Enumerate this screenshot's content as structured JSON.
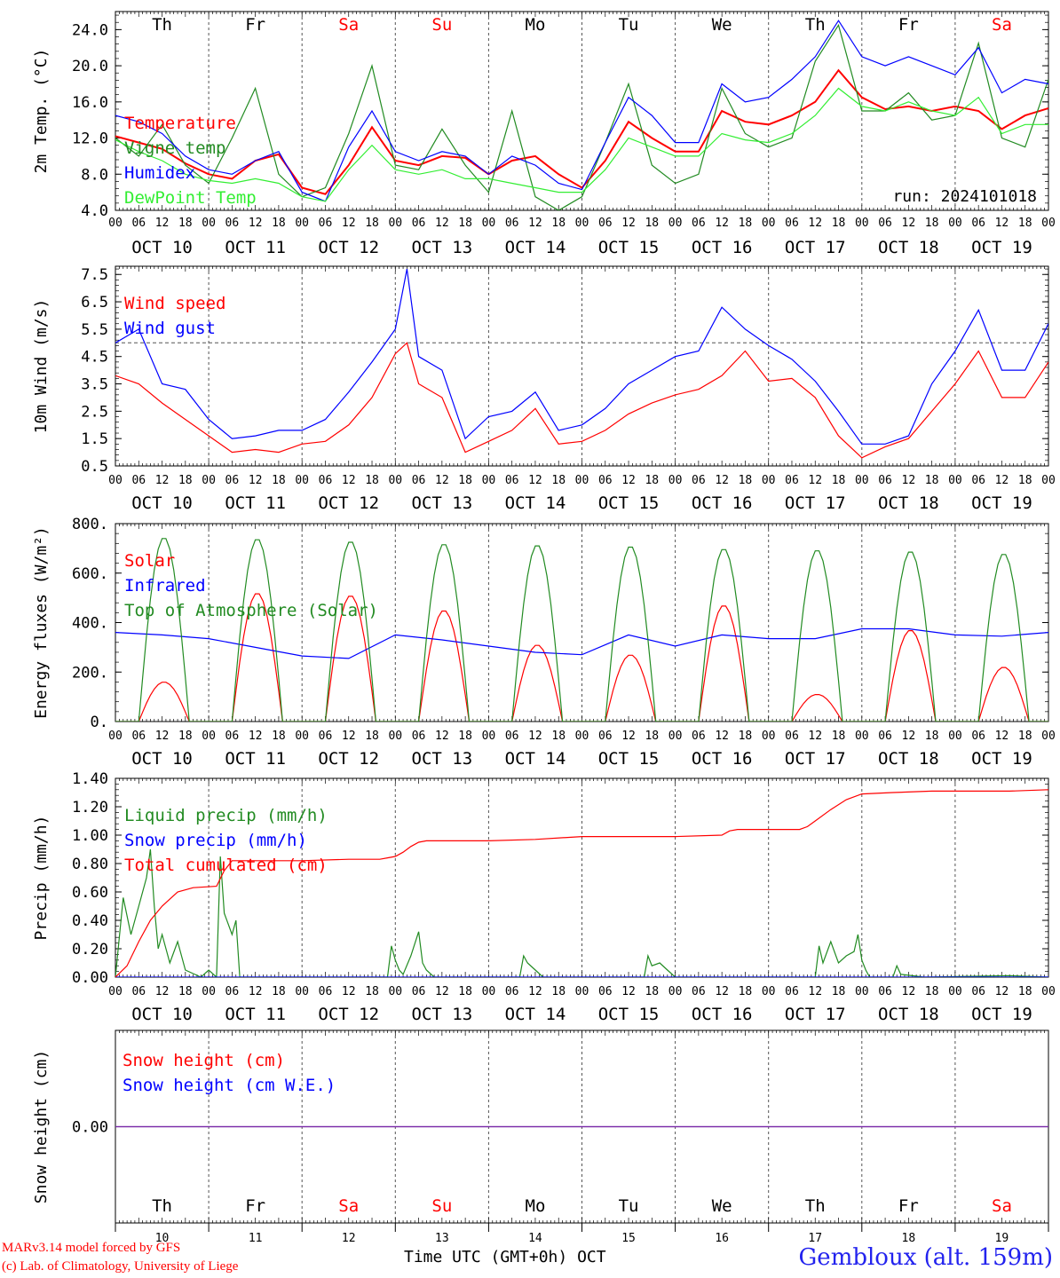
{
  "meta": {
    "run_label": "run: 2024101018",
    "credit_line1": "MARv3.14 model forced by GFS",
    "credit_line2": "(c) Lab. of Climatology, University of Liege",
    "station": "Gembloux (alt. 159m)",
    "xaxis_title": "Time UTC (GMT+0h) OCT"
  },
  "colors": {
    "red": "#ff0000",
    "dark_green": "#228b22",
    "blue": "#0000ff",
    "light_green": "#33ee33",
    "purple": "#7a2aa8",
    "grid": "#555555"
  },
  "time_axis": {
    "hour_ticks": [
      "00",
      "06",
      "12",
      "18"
    ],
    "end_tick": "00",
    "dates": [
      "OCT 10",
      "OCT 11",
      "OCT 12",
      "OCT 13",
      "OCT 14",
      "OCT 15",
      "OCT 16",
      "OCT 17",
      "OCT 18",
      "OCT 19"
    ],
    "day_names": [
      "Th",
      "Fr",
      "Sa",
      "Su",
      "Mo",
      "Tu",
      "We",
      "Th",
      "Fr",
      "Sa"
    ],
    "weekend_days": [
      2,
      3,
      9
    ],
    "day_numbers": [
      "10",
      "11",
      "12",
      "13",
      "14",
      "15",
      "16",
      "17",
      "18",
      "19"
    ]
  },
  "chart_data": [
    {
      "type": "line",
      "ylabel": "2m Temp. (°C)",
      "ylim": [
        4.0,
        26.0
      ],
      "yticks": [
        4.0,
        8.0,
        12.0,
        16.0,
        20.0,
        24.0
      ],
      "ytick_labels": [
        "4.0",
        "8.0",
        "12.0",
        "16.0",
        "20.0",
        "24.0"
      ],
      "xlim_hours": [
        0,
        240
      ],
      "series": [
        {
          "name": "Temperature",
          "color": "#ff0000",
          "x": [
            0,
            6,
            12,
            18,
            24,
            30,
            36,
            42,
            48,
            54,
            60,
            66,
            72,
            78,
            84,
            90,
            96,
            102,
            108,
            114,
            120,
            126,
            132,
            138,
            144,
            150,
            156,
            162,
            168,
            174,
            180,
            186,
            192,
            198,
            204,
            210,
            216,
            222,
            228,
            234,
            240
          ],
          "y": [
            12.2,
            11.5,
            10.8,
            9.2,
            8.0,
            7.5,
            9.5,
            10.2,
            6.5,
            5.8,
            9.0,
            13.2,
            9.5,
            9.0,
            10.0,
            9.8,
            8.0,
            9.5,
            10.0,
            8.0,
            6.5,
            9.5,
            13.8,
            12.0,
            10.5,
            10.5,
            15.0,
            13.8,
            13.5,
            14.5,
            16.0,
            19.5,
            16.5,
            15.2,
            15.5,
            15.0,
            15.5,
            15.0,
            13.0,
            14.5,
            15.3
          ]
        },
        {
          "name": "Vigne temp",
          "color": "#228b22",
          "x": [
            0,
            6,
            12,
            18,
            24,
            30,
            36,
            42,
            48,
            54,
            60,
            66,
            72,
            78,
            84,
            90,
            96,
            102,
            108,
            114,
            120,
            126,
            132,
            138,
            144,
            150,
            156,
            162,
            168,
            174,
            180,
            186,
            192,
            198,
            204,
            210,
            216,
            222,
            228,
            234,
            240
          ],
          "y": [
            12.0,
            10.0,
            13.5,
            9.0,
            7.0,
            12.0,
            17.5,
            8.0,
            5.5,
            6.5,
            12.5,
            20.0,
            9.0,
            8.5,
            13.0,
            9.0,
            6.0,
            15.0,
            5.5,
            4.0,
            5.5,
            11.5,
            18.0,
            9.0,
            7.0,
            8.0,
            17.5,
            12.5,
            11.0,
            12.0,
            20.5,
            24.5,
            15.0,
            15.0,
            17.0,
            14.0,
            14.5,
            22.5,
            12.0,
            11.0,
            18.5
          ]
        },
        {
          "name": "Humidex",
          "color": "#0000ff",
          "x": [
            0,
            6,
            12,
            18,
            24,
            30,
            36,
            42,
            48,
            54,
            60,
            66,
            72,
            78,
            84,
            90,
            96,
            102,
            108,
            114,
            120,
            126,
            132,
            138,
            144,
            150,
            156,
            162,
            168,
            174,
            180,
            186,
            192,
            198,
            204,
            210,
            216,
            222,
            228,
            234,
            240
          ],
          "y": [
            14.5,
            13.8,
            12.5,
            10.0,
            8.5,
            8.0,
            9.5,
            10.5,
            6.0,
            5.0,
            11.0,
            15.0,
            10.5,
            9.5,
            10.5,
            10.0,
            8.0,
            10.0,
            9.0,
            7.0,
            6.3,
            11.5,
            16.5,
            14.5,
            11.5,
            11.5,
            18.0,
            16.0,
            16.5,
            18.5,
            21.0,
            25.0,
            21.0,
            20.0,
            21.0,
            20.0,
            19.0,
            22.0,
            17.0,
            18.5,
            18.0
          ]
        },
        {
          "name": "DewPoint Temp",
          "color": "#33ee33",
          "x": [
            0,
            6,
            12,
            18,
            24,
            30,
            36,
            42,
            48,
            54,
            60,
            66,
            72,
            78,
            84,
            90,
            96,
            102,
            108,
            114,
            120,
            126,
            132,
            138,
            144,
            150,
            156,
            162,
            168,
            174,
            180,
            186,
            192,
            198,
            204,
            210,
            216,
            222,
            228,
            234,
            240
          ],
          "y": [
            11.8,
            10.5,
            9.5,
            8.0,
            7.3,
            7.0,
            7.5,
            7.0,
            5.5,
            5.0,
            8.5,
            11.2,
            8.5,
            8.0,
            8.5,
            7.5,
            7.5,
            7.0,
            6.5,
            6.0,
            6.0,
            8.5,
            12.0,
            11.0,
            10.0,
            10.0,
            12.5,
            11.8,
            11.5,
            12.5,
            14.5,
            17.5,
            15.5,
            15.0,
            16.0,
            15.0,
            14.5,
            16.5,
            12.5,
            13.5,
            13.5
          ]
        }
      ],
      "legend": [
        "Temperature",
        "Vigne temp",
        "Humidex",
        "DewPoint Temp"
      ],
      "annotation": "run: 2024101018"
    },
    {
      "type": "line",
      "ylabel": "10m Wind (m/s)",
      "ylim": [
        0.5,
        7.8
      ],
      "yticks": [
        0.5,
        1.5,
        2.5,
        3.5,
        4.5,
        5.5,
        6.5,
        7.5
      ],
      "ytick_labels": [
        "0.5",
        "1.5",
        "2.5",
        "3.5",
        "4.5",
        "5.5",
        "6.5",
        "7.5"
      ],
      "reference_line": 5.0,
      "xlim_hours": [
        0,
        240
      ],
      "series": [
        {
          "name": "Wind speed",
          "color": "#ff0000",
          "x": [
            0,
            6,
            12,
            18,
            24,
            30,
            36,
            42,
            48,
            54,
            60,
            66,
            72,
            75,
            78,
            84,
            90,
            96,
            102,
            108,
            114,
            120,
            126,
            132,
            138,
            144,
            150,
            156,
            162,
            168,
            174,
            180,
            186,
            192,
            198,
            204,
            210,
            216,
            222,
            228,
            234,
            240
          ],
          "y": [
            3.8,
            3.5,
            2.8,
            2.2,
            1.6,
            1.0,
            1.1,
            1.0,
            1.3,
            1.4,
            2.0,
            3.0,
            4.6,
            5.0,
            3.5,
            3.0,
            1.0,
            1.4,
            1.8,
            2.6,
            1.3,
            1.4,
            1.8,
            2.4,
            2.8,
            3.1,
            3.3,
            3.8,
            4.7,
            3.6,
            3.7,
            3.0,
            1.6,
            0.8,
            1.2,
            1.5,
            2.5,
            3.5,
            4.7,
            3.0,
            3.0,
            4.3
          ]
        },
        {
          "name": "Wind gust",
          "color": "#0000ff",
          "x": [
            0,
            6,
            12,
            18,
            24,
            30,
            36,
            42,
            48,
            54,
            60,
            66,
            72,
            75,
            78,
            84,
            90,
            96,
            102,
            108,
            114,
            120,
            126,
            132,
            138,
            144,
            150,
            156,
            162,
            168,
            174,
            180,
            186,
            192,
            198,
            204,
            210,
            216,
            222,
            228,
            234,
            240
          ],
          "y": [
            5.0,
            5.5,
            3.5,
            3.3,
            2.2,
            1.5,
            1.6,
            1.8,
            1.8,
            2.2,
            3.2,
            4.3,
            5.5,
            7.7,
            4.5,
            4.0,
            1.5,
            2.3,
            2.5,
            3.2,
            1.8,
            2.0,
            2.6,
            3.5,
            4.0,
            4.5,
            4.7,
            6.3,
            5.5,
            4.9,
            4.4,
            3.6,
            2.5,
            1.3,
            1.3,
            1.6,
            3.5,
            4.7,
            6.2,
            4.0,
            4.0,
            5.7
          ]
        }
      ],
      "legend": [
        "Wind speed",
        "Wind gust"
      ]
    },
    {
      "type": "line",
      "ylabel": "Energy fluxes (W/m²)",
      "ylim": [
        0,
        800
      ],
      "yticks": [
        0,
        200,
        400,
        600,
        800
      ],
      "ytick_labels": [
        "0.",
        "200.",
        "400.",
        "600.",
        "800."
      ],
      "xlim_hours": [
        0,
        240
      ],
      "series": [
        {
          "name": "Solar",
          "color": "#ff0000",
          "daily_peak_hour": 12.5,
          "daily_peaks": [
            160,
            520,
            510,
            450,
            310,
            270,
            470,
            110,
            370,
            220
          ]
        },
        {
          "name": "Infrared",
          "color": "#0000ff",
          "x": [
            0,
            12,
            24,
            36,
            48,
            60,
            72,
            84,
            96,
            108,
            120,
            132,
            144,
            156,
            168,
            180,
            192,
            204,
            216,
            228,
            240
          ],
          "y": [
            360,
            350,
            335,
            300,
            265,
            255,
            350,
            330,
            305,
            280,
            270,
            350,
            305,
            350,
            335,
            335,
            375,
            375,
            350,
            345,
            360
          ]
        },
        {
          "name": "Top of Atmosphere (Solar)",
          "color": "#228b22",
          "daily_peak_hour": 12.5,
          "daily_peaks": [
            745,
            740,
            730,
            720,
            715,
            710,
            700,
            695,
            690,
            680
          ]
        }
      ],
      "legend": [
        "Solar",
        "Infrared",
        "Top of Atmosphere (Solar)"
      ]
    },
    {
      "type": "line",
      "ylabel": "Precip (mm/h)",
      "ylim": [
        0,
        1.4
      ],
      "yticks": [
        0,
        0.2,
        0.4,
        0.6,
        0.8,
        1.0,
        1.2,
        1.4
      ],
      "ytick_labels": [
        "0.00",
        "0.20",
        "0.40",
        "0.60",
        "0.80",
        "1.00",
        "1.20",
        "1.40"
      ],
      "xlim_hours": [
        0,
        240
      ],
      "series": [
        {
          "name": "Liquid precip (mm/h)",
          "color": "#228b22",
          "x": [
            0,
            2,
            4,
            6,
            8,
            9,
            10,
            11,
            12,
            14,
            16,
            18,
            22,
            24,
            26,
            27,
            28,
            30,
            31,
            32,
            34,
            70,
            71,
            72,
            73,
            74,
            76,
            78,
            79,
            80,
            82,
            84,
            104,
            105,
            106,
            108,
            110,
            116,
            136,
            137,
            138,
            140,
            142,
            144,
            180,
            181,
            182,
            184,
            186,
            188,
            190,
            191,
            192,
            193,
            194,
            196,
            200,
            201,
            202,
            208,
            230,
            240
          ],
          "y": [
            0,
            0.56,
            0.3,
            0.5,
            0.7,
            0.9,
            0.5,
            0.2,
            0.3,
            0.1,
            0.25,
            0.05,
            0,
            0.05,
            0,
            0.85,
            0.45,
            0.3,
            0.4,
            0,
            0,
            0,
            0.22,
            0.12,
            0.05,
            0.02,
            0.15,
            0.32,
            0.1,
            0.05,
            0,
            0,
            0,
            0.15,
            0.1,
            0.05,
            0,
            0,
            0,
            0.15,
            0.08,
            0.1,
            0.05,
            0,
            0,
            0.22,
            0.1,
            0.25,
            0.1,
            0.15,
            0.18,
            0.3,
            0.12,
            0.05,
            0,
            0,
            0,
            0.08,
            0.02,
            0,
            0.01,
            0
          ]
        },
        {
          "name": "Snow precip (mm/h)",
          "color": "#0000ff",
          "x": [
            0,
            240
          ],
          "y": [
            0,
            0
          ]
        },
        {
          "name": "Total cumulated (cm)",
          "color": "#ff0000",
          "x": [
            0,
            3,
            6,
            9,
            12,
            16,
            20,
            26,
            28,
            30,
            48,
            60,
            68,
            70,
            72,
            74,
            76,
            78,
            80,
            96,
            108,
            120,
            132,
            144,
            156,
            158,
            160,
            168,
            176,
            178,
            180,
            184,
            188,
            192,
            200,
            210,
            220,
            230,
            240
          ],
          "y": [
            0.0,
            0.08,
            0.25,
            0.4,
            0.5,
            0.6,
            0.63,
            0.64,
            0.75,
            0.82,
            0.82,
            0.83,
            0.83,
            0.84,
            0.85,
            0.88,
            0.92,
            0.95,
            0.96,
            0.96,
            0.97,
            0.99,
            0.99,
            0.99,
            1.0,
            1.03,
            1.04,
            1.04,
            1.04,
            1.06,
            1.1,
            1.18,
            1.25,
            1.29,
            1.3,
            1.31,
            1.31,
            1.31,
            1.32
          ]
        }
      ],
      "legend": [
        "Liquid precip (mm/h)",
        "Snow precip (mm/h)",
        "Total cumulated (cm)"
      ]
    },
    {
      "type": "line",
      "ylabel": "Snow height (cm)",
      "ylim": [
        -1,
        1
      ],
      "yticks": [
        0
      ],
      "ytick_labels": [
        "0.00"
      ],
      "xlim_hours": [
        0,
        240
      ],
      "series": [
        {
          "name": "Snow height (cm)",
          "color": "#ff0000",
          "x": [
            0,
            240
          ],
          "y": [
            0,
            0
          ]
        },
        {
          "name": "Snow height (cm W.E.)",
          "color": "#0000ff",
          "x": [
            0,
            240
          ],
          "y": [
            0,
            0
          ]
        }
      ],
      "legend": [
        "Snow height (cm)",
        "Snow height (cm W.E.)"
      ]
    }
  ]
}
